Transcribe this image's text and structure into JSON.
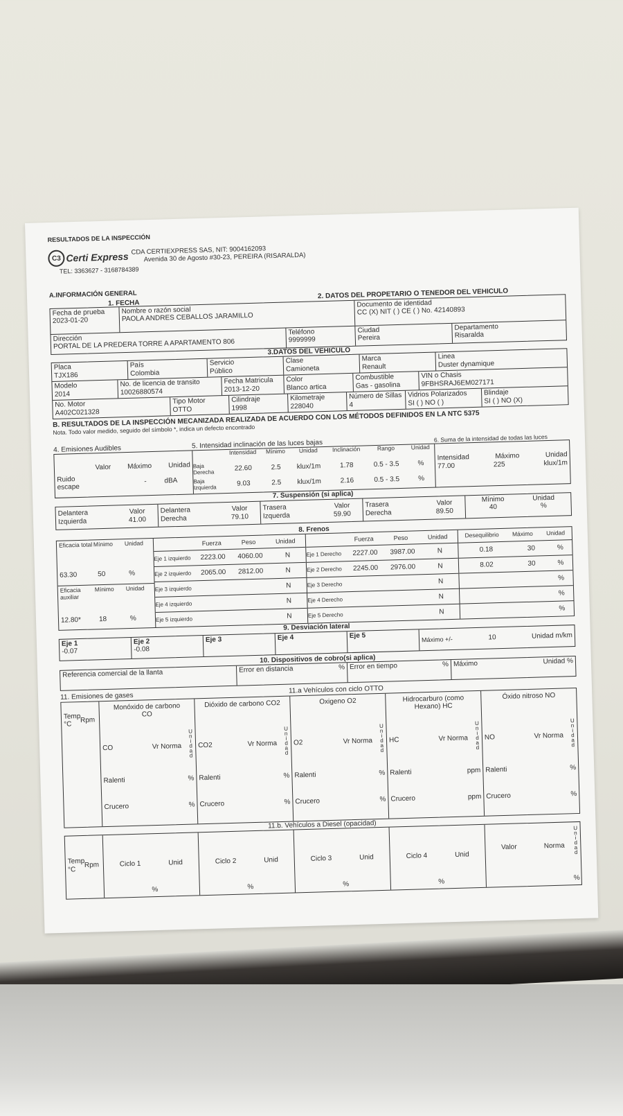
{
  "header": {
    "title": "RESULTADOS DE LA INSPECCIÓN",
    "logo_text": "Certi Express",
    "logo_mark": "C3",
    "company": "CDA CERTIEXPRESS SAS, NIT: 9004162093",
    "address": "Avenida 30 de Agosto #30-23, PEREIRA (RISARALDA)",
    "tel": "TEL: 3363627 - 3168784389"
  },
  "section_a": "A.INFORMACIÓN GENERAL",
  "fecha": {
    "title": "1. FECHA",
    "label": "Fecha de prueba",
    "value": "2023-01-20"
  },
  "owner": {
    "title": "2. DATOS DEL PROPETARIO O TENEDOR DEL VEHICULO",
    "name_label": "Nombre o razón social",
    "name": "PAOLA ANDRES CEBALLOS JARAMILLO",
    "doc_label": "Documento de identidad",
    "doc": "CC (X) NIT ( ) CE ( ) No. 42140893",
    "address_label": "Dirección",
    "address": "PORTAL DE LA PREDERA TORRE A APARTAMENTO 806",
    "phone_label": "Teléfono",
    "phone": "9999999",
    "city_label": "Ciudad",
    "city": "Pereira",
    "dept_label": "Departamento",
    "dept": "Risaralda"
  },
  "vehicle": {
    "title": "3.DATOS DEL VEHICULO",
    "rows": [
      [
        {
          "label": "Placa",
          "value": "TJX186"
        },
        {
          "label": "País",
          "value": "Colombia"
        },
        {
          "label": "Servicio",
          "value": "Público"
        },
        {
          "label": "Clase",
          "value": "Camioneta"
        },
        {
          "label": "Marca",
          "value": "Renault"
        },
        {
          "label": "Linea",
          "value": "Duster dynamique"
        }
      ],
      [
        {
          "label": "Modelo",
          "value": "2014"
        },
        {
          "label": "No. de licencia de transito",
          "value": "10026880574"
        },
        {
          "label": "Fecha Matricula",
          "value": "2013-12-20"
        },
        {
          "label": "Color",
          "value": "Blanco artica"
        },
        {
          "label": "Combustible",
          "value": "Gas - gasolina"
        },
        {
          "label": "VIN o Chasis",
          "value": "9FBHSRAJ6EM027171"
        }
      ],
      [
        {
          "label": "No. Motor",
          "value": "A402C021328"
        },
        {
          "label": "Tipo Motor",
          "value": "OTTO"
        },
        {
          "label": "Cilindraje",
          "value": "1998"
        },
        {
          "label": "Kilometraje",
          "value": "228040"
        },
        {
          "label": "Número de Sillas",
          "value": "4"
        },
        {
          "label": "Vidrios Polarizados",
          "value": "SI ( ) NO ( )"
        },
        {
          "label": "Blindaje",
          "value": "SI ( ) NO (X)"
        }
      ]
    ]
  },
  "section_b": {
    "title": "B. RESULTADOS DE LA INSPECCIÓN MECANIZADA REALIZADA DE ACUERDO CON LOS MÉTODOS DEFINIDOS EN LA NTC 5375",
    "note": "Nota. Todo valor medido, seguido del símbolo *, indica un defecto encontrado"
  },
  "noise": {
    "title": "4. Emisiones Audibles",
    "headers": [
      "Valor",
      "Máximo",
      "Unidad"
    ],
    "label": "Ruido escape",
    "valor": "",
    "maximo": "-",
    "unidad": "dBA"
  },
  "lights": {
    "title": "5. Intensidad inclinación de las luces bajas",
    "headers": [
      "Intensidad",
      "Mínimo",
      "Unidad",
      "Inclinación",
      "Rango",
      "Unidad"
    ],
    "rows": [
      {
        "label": "Baja Derecha",
        "values": [
          "22.60",
          "2.5",
          "klux/1m",
          "1.78",
          "0.5 - 3.5",
          "%"
        ]
      },
      {
        "label": "Baja Izquierda",
        "values": [
          "9.03",
          "2.5",
          "klux/1m",
          "2.16",
          "0.5 - 3.5",
          "%"
        ]
      }
    ]
  },
  "lights_sum": {
    "title": "6. Suma de la intensidad de todas las luces",
    "headers": [
      "Intensidad",
      "Máximo",
      "Unidad"
    ],
    "values": [
      "77.00",
      "225",
      "klux/1m"
    ]
  },
  "suspension": {
    "title": "7. Suspensión (si aplica)",
    "value_label": "Valor",
    "items": [
      {
        "label": "Delantera Izquierda",
        "value": "41.00"
      },
      {
        "label": "Delantera Derecha",
        "value": "79.10"
      },
      {
        "label": "Trasera Izquerda",
        "value": "59.90"
      },
      {
        "label": "Trasera Derecha",
        "value": "89.50"
      }
    ],
    "min_label": "Mínimo",
    "min": "40",
    "unit_label": "Unidad",
    "unit": "%"
  },
  "brakes": {
    "title": "8. Frenos",
    "total": {
      "label": "Eficacia total",
      "min_label": "Mínimo",
      "unit_label": "Unidad",
      "value": "63.30",
      "min": "50",
      "unit": "%"
    },
    "aux": {
      "label": "Eficacia auxiliar",
      "min_label": "Mínimo",
      "unit_label": "Unidad",
      "value": "12.80*",
      "min": "18",
      "unit": "%"
    },
    "headers": [
      "Fuerza",
      "Peso",
      "Unidad"
    ],
    "imb_headers": [
      "Desequilibrio",
      "Máximo",
      "Unidad"
    ],
    "left": [
      {
        "label": "Eje 1 izquierdo",
        "fuerza": "2223.00",
        "peso": "4060.00",
        "unit": "N"
      },
      {
        "label": "Eje 2 izquierdo",
        "fuerza": "2065.00",
        "peso": "2812.00",
        "unit": "N"
      },
      {
        "label": "Eje 3 izquierdo",
        "fuerza": "",
        "peso": "",
        "unit": "N"
      },
      {
        "label": "Eje 4 izquierdo",
        "fuerza": "",
        "peso": "",
        "unit": "N"
      },
      {
        "label": "Eje 5 izquierdo",
        "fuerza": "",
        "peso": "",
        "unit": "N"
      }
    ],
    "right": [
      {
        "label": "Eje 1 Derecho",
        "fuerza": "2227.00",
        "peso": "3987.00",
        "unit": "N",
        "imb": "0.18",
        "max": "30",
        "imb_unit": "%"
      },
      {
        "label": "Eje 2 Derecho",
        "fuerza": "2245.00",
        "peso": "2976.00",
        "unit": "N",
        "imb": "8.02",
        "max": "30",
        "imb_unit": "%"
      },
      {
        "label": "Eje 3 Derecho",
        "fuerza": "",
        "peso": "",
        "unit": "N",
        "imb": "",
        "max": "",
        "imb_unit": "%"
      },
      {
        "label": "Eje 4 Derecho",
        "fuerza": "",
        "peso": "",
        "unit": "N",
        "imb": "",
        "max": "",
        "imb_unit": "%"
      },
      {
        "label": "Eje 5 Derecho",
        "fuerza": "",
        "peso": "",
        "unit": "N",
        "imb": "",
        "max": "",
        "imb_unit": "%"
      }
    ]
  },
  "deviation": {
    "title": "9. Desviación lateral",
    "axles": [
      {
        "label": "Eje 1",
        "value": "-0.07"
      },
      {
        "label": "Eje 2",
        "value": "-0.08"
      },
      {
        "label": "Eje 3",
        "value": ""
      },
      {
        "label": "Eje 4",
        "value": ""
      },
      {
        "label": "Eje 5",
        "value": ""
      }
    ],
    "max_label": "Máximo +/-",
    "max": "10",
    "unit": "Unidad m/km"
  },
  "taximeter": {
    "title": "10. Dispositivos de cobro(si aplica)",
    "tire_label": "Referencia comercial de la llanta",
    "dist_label": "Error en distancia",
    "dist_unit": "%",
    "time_label": "Error en tiempo",
    "time_unit": "%",
    "max_label": "Máximo",
    "unit_label": "Unidad %"
  },
  "gases": {
    "title": "11. Emisiones de gases",
    "otto_title": "11.a Vehículos con ciclo OTTO",
    "temp_label": "Temp °C",
    "rpm_label": "Rpm",
    "columns": [
      {
        "name": "Monóxido de carbono CO",
        "code": "CO",
        "norm": "Vr  Norma",
        "unit_label": "Unidad",
        "ralenti": "Ralenti",
        "crucero": "Crucero",
        "unit1": "%",
        "unit2": "%"
      },
      {
        "name": "Dióxido de carbono CO2",
        "code": "CO2",
        "norm": "Vr  Norma",
        "unit_label": "Unidad",
        "ralenti": "Ralenti",
        "crucero": "Crucero",
        "unit1": "%",
        "unit2": "%"
      },
      {
        "name": "Oxigeno O2",
        "code": "O2",
        "norm": "Vr  Norma",
        "unit_label": "Unidad",
        "ralenti": "Ralenti",
        "crucero": "Crucero",
        "unit1": "%",
        "unit2": "%"
      },
      {
        "name": "Hidrocarburo (como Hexano) HC",
        "code": "HC",
        "norm": "Vr  Norma",
        "unit_label": "Unidad",
        "ralenti": "Ralenti",
        "crucero": "Crucero",
        "unit1": "ppm",
        "unit2": "ppm"
      },
      {
        "name": "Óxido nitroso NO",
        "code": "NO",
        "norm": "Vr  Norma",
        "unit_label": "Unidad",
        "ralenti": "Ralenti",
        "crucero": "Crucero",
        "unit1": "%",
        "unit2": "%"
      }
    ]
  },
  "diesel": {
    "title": "11.b. Vehículos a Diesel (opacidad)",
    "temp_label": "Temp °C",
    "rpm_label": "Rpm",
    "cycles": [
      {
        "label": "Ciclo 1",
        "unit_label": "Unid",
        "unit": "%"
      },
      {
        "label": "Ciclo 2",
        "unit_label": "Unid",
        "unit": "%"
      },
      {
        "label": "Ciclo 3",
        "unit_label": "Unid",
        "unit": "%"
      },
      {
        "label": "Ciclo 4",
        "unit_label": "Unid",
        "unit": "%"
      }
    ],
    "value_label": "Valor",
    "norm_label": "Norma",
    "unit_label": "Unidad",
    "unit": "%"
  }
}
